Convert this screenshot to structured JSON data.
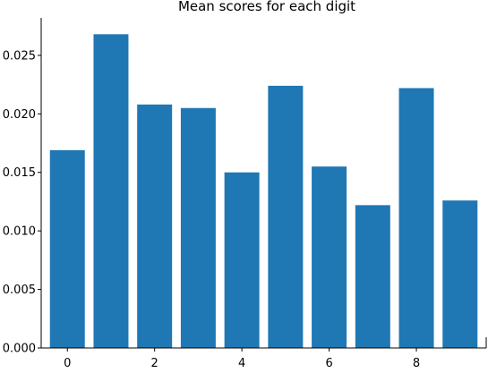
{
  "chart_data": {
    "type": "bar",
    "title": "Mean scores for each digit",
    "xlabel": "",
    "ylabel": "",
    "categories": [
      0,
      1,
      2,
      3,
      4,
      5,
      6,
      7,
      8,
      9
    ],
    "values": [
      0.0169,
      0.0268,
      0.0208,
      0.0205,
      0.015,
      0.0224,
      0.0155,
      0.0122,
      0.0222,
      0.0126
    ],
    "xlim": [
      -0.6,
      9.6
    ],
    "ylim": [
      0,
      0.0282
    ],
    "x_ticks": [
      0,
      2,
      4,
      6,
      8
    ],
    "x_tick_labels": [
      "0",
      "2",
      "4",
      "6",
      "8"
    ],
    "y_ticks": [
      0,
      0.005,
      0.01,
      0.015,
      0.02,
      0.025
    ],
    "y_tick_labels": [
      "0.000",
      "0.005",
      "0.010",
      "0.015",
      "0.020",
      "0.025"
    ],
    "grid": false,
    "bar_color": "#1f77b4"
  }
}
